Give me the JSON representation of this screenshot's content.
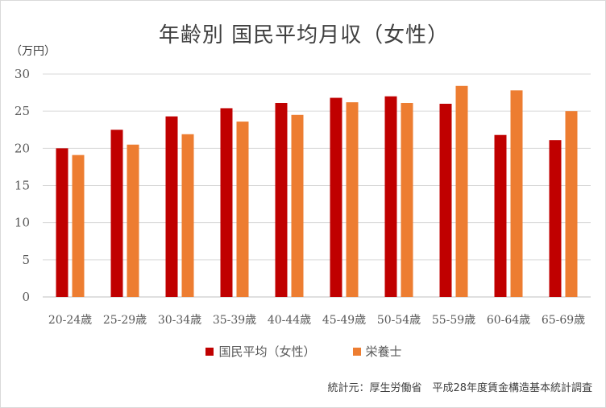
{
  "chart_data": {
    "type": "bar",
    "title": "年齢別 国民平均月収（女性）",
    "unit_label": "（万円）",
    "categories": [
      "20-24歳",
      "25-29歳",
      "30-34歳",
      "35-39歳",
      "40-44歳",
      "45-49歳",
      "50-54歳",
      "55-59歳",
      "60-64歳",
      "65-69歳"
    ],
    "series": [
      {
        "name": "国民平均（女性）",
        "color": "#c00000",
        "values": [
          20.0,
          22.5,
          24.3,
          25.4,
          26.1,
          26.8,
          27.0,
          26.0,
          21.8,
          21.1
        ]
      },
      {
        "name": "栄養士",
        "color": "#ed7d31",
        "values": [
          19.1,
          20.5,
          21.9,
          23.6,
          24.5,
          26.2,
          26.1,
          28.4,
          27.8,
          25.0
        ]
      }
    ],
    "yticks": [
      0,
      5,
      10,
      15,
      20,
      25,
      30
    ],
    "ylim": [
      0,
      30
    ],
    "grid": true,
    "legend_position": "bottom",
    "source": "統計元：厚生労働省　平成28年度賃金構造基本統計調査"
  }
}
